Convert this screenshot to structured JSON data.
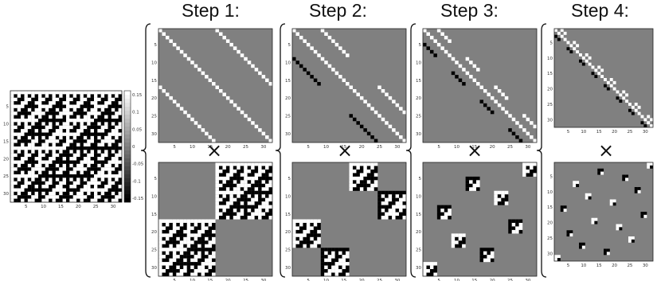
{
  "steps": [
    {
      "title": "Step 1:"
    },
    {
      "title": "Step 2:"
    },
    {
      "title": "Step 3:"
    },
    {
      "title": "Step 4:"
    }
  ],
  "times_symbol": "×",
  "axis_ticks": [
    "5",
    "10",
    "15",
    "20",
    "25",
    "30"
  ],
  "colorbar_ticks": [
    "0.15",
    "0.1",
    "0.05",
    "0",
    "-0.05",
    "-0.1",
    "-0.15"
  ],
  "colors": {
    "background_gray": "#808080",
    "positive": "#ffffff",
    "negative": "#000000"
  },
  "matrix_size": 32
}
